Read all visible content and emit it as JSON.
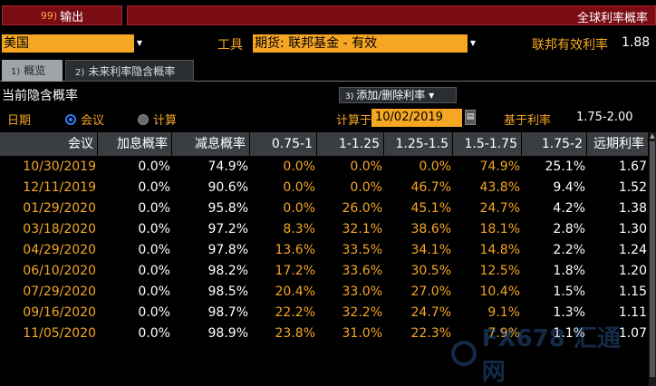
{
  "toolbar": {
    "export_num": "99)",
    "export_label": "输出",
    "title": "全球利率概率"
  },
  "filters": {
    "country": "美国",
    "tool_label": "工具",
    "tool_value": "期货: 联邦基金 - 有效",
    "effective_rate_label": "联邦有效利率",
    "effective_rate_value": "1.88"
  },
  "tabs": [
    {
      "num": "1)",
      "label": "概览"
    },
    {
      "num": "2)",
      "label": "未来利率隐含概率"
    }
  ],
  "section": {
    "title": "当前隐含概率",
    "add_num": "3)",
    "add_label": "添加/删除利率 ▾"
  },
  "options": {
    "date_label": "日期",
    "meeting_label": "会议",
    "calc_label": "计算",
    "calc_at_label": "计算于",
    "calc_date": "10/02/2019",
    "base_rate_label": "基于利率",
    "base_rate_value": "1.75-2.00"
  },
  "table": {
    "headers": [
      "会议",
      "加息概率",
      "减息概率",
      "0.75-1",
      "1-1.25",
      "1.25-1.5",
      "1.5-1.75",
      "1.75-2",
      "远期利率"
    ],
    "rows": [
      [
        "10/30/2019",
        "0.0%",
        "74.9%",
        "0.0%",
        "0.0%",
        "0.0%",
        "74.9%",
        "25.1%",
        "1.67"
      ],
      [
        "12/11/2019",
        "0.0%",
        "90.6%",
        "0.0%",
        "0.0%",
        "46.7%",
        "43.8%",
        "9.4%",
        "1.52"
      ],
      [
        "01/29/2020",
        "0.0%",
        "95.8%",
        "0.0%",
        "26.0%",
        "45.1%",
        "24.7%",
        "4.2%",
        "1.38"
      ],
      [
        "03/18/2020",
        "0.0%",
        "97.2%",
        "8.3%",
        "32.1%",
        "38.6%",
        "18.1%",
        "2.8%",
        "1.30"
      ],
      [
        "04/29/2020",
        "0.0%",
        "97.8%",
        "13.6%",
        "33.5%",
        "34.1%",
        "14.8%",
        "2.2%",
        "1.24"
      ],
      [
        "06/10/2020",
        "0.0%",
        "98.2%",
        "17.2%",
        "33.6%",
        "30.5%",
        "12.5%",
        "1.8%",
        "1.20"
      ],
      [
        "07/29/2020",
        "0.0%",
        "98.5%",
        "20.4%",
        "33.0%",
        "27.0%",
        "10.4%",
        "1.5%",
        "1.15"
      ],
      [
        "09/16/2020",
        "0.0%",
        "98.7%",
        "22.2%",
        "32.2%",
        "24.7%",
        "9.1%",
        "1.3%",
        "1.11"
      ],
      [
        "11/05/2020",
        "0.0%",
        "98.9%",
        "23.8%",
        "31.0%",
        "22.3%",
        "7.9%",
        "1.1%",
        "1.07"
      ]
    ]
  },
  "watermark": {
    "text": "FX678 汇通网"
  },
  "colors": {
    "accent": "#f5a623",
    "header_bg": "#7a0c14",
    "radio": "#2f7cf6"
  }
}
